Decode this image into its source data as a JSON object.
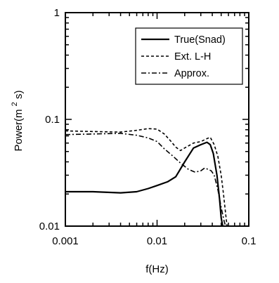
{
  "chart_data": {
    "type": "line",
    "xlabel": "f(Hz)",
    "ylabel_main": "Power(m",
    "ylabel_sup": "2",
    "ylabel_tail": "s)",
    "xscale": "log",
    "yscale": "log",
    "xlim": [
      0.001,
      0.1
    ],
    "ylim": [
      0.01,
      1
    ],
    "xticks": [
      {
        "value": 0.001,
        "label": "0.001"
      },
      {
        "value": 0.01,
        "label": "0.01"
      },
      {
        "value": 0.1,
        "label": "0.1"
      }
    ],
    "yticks": [
      {
        "value": 0.01,
        "label": "0.01"
      },
      {
        "value": 0.1,
        "label": "0.1"
      },
      {
        "value": 1,
        "label": "1"
      }
    ],
    "grid": false,
    "legend_position": "top-right",
    "series": [
      {
        "name": "True(Snad)",
        "style": "solid",
        "x": [
          0.001,
          0.002,
          0.004,
          0.006,
          0.008,
          0.01,
          0.013,
          0.016,
          0.02,
          0.025,
          0.03,
          0.035,
          0.038,
          0.041,
          0.045,
          0.048,
          0.05,
          0.052
        ],
        "y": [
          0.021,
          0.021,
          0.0205,
          0.021,
          0.0225,
          0.024,
          0.026,
          0.029,
          0.04,
          0.054,
          0.058,
          0.061,
          0.058,
          0.048,
          0.03,
          0.018,
          0.012,
          0.01
        ]
      },
      {
        "name": "Ext. L-H",
        "style": "dashed",
        "x": [
          0.001,
          0.002,
          0.004,
          0.006,
          0.008,
          0.01,
          0.012,
          0.014,
          0.016,
          0.018,
          0.02,
          0.025,
          0.03,
          0.035,
          0.038,
          0.042,
          0.046,
          0.05,
          0.053,
          0.056,
          0.058
        ],
        "y": [
          0.078,
          0.077,
          0.076,
          0.079,
          0.082,
          0.081,
          0.073,
          0.063,
          0.055,
          0.051,
          0.054,
          0.06,
          0.062,
          0.066,
          0.068,
          0.058,
          0.045,
          0.03,
          0.02,
          0.013,
          0.01
        ]
      },
      {
        "name": "Approx.",
        "style": "dashdot",
        "x": [
          0.001,
          0.002,
          0.004,
          0.006,
          0.008,
          0.01,
          0.012,
          0.015,
          0.018,
          0.022,
          0.026,
          0.03,
          0.033,
          0.036,
          0.039,
          0.042,
          0.046,
          0.05,
          0.054,
          0.056
        ],
        "y": [
          0.072,
          0.073,
          0.074,
          0.071,
          0.067,
          0.062,
          0.053,
          0.045,
          0.039,
          0.034,
          0.032,
          0.033,
          0.035,
          0.034,
          0.033,
          0.03,
          0.022,
          0.015,
          0.011,
          0.01
        ]
      }
    ]
  }
}
